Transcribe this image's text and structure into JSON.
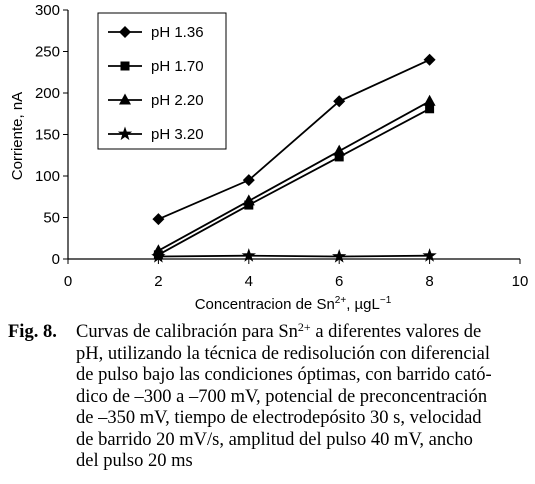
{
  "chart_data": {
    "type": "line",
    "title": "",
    "xlabel": "Concentracion de Sn",
    "xlabel_sup": "2+",
    "xlabel_unit": ", µgL",
    "xlabel_unit_sup": "−1",
    "ylabel": "Corriente, nA",
    "xlim": [
      0,
      10
    ],
    "ylim": [
      0,
      300
    ],
    "xticks": [
      "0",
      "2",
      "4",
      "6",
      "8",
      "10"
    ],
    "yticks": [
      "0",
      "50",
      "100",
      "150",
      "200",
      "250",
      "300"
    ],
    "grid": false,
    "legend_position": "top-left inside",
    "x": [
      2,
      4,
      6,
      8
    ],
    "series": [
      {
        "name": "pH 1.36",
        "marker": "diamond",
        "values": [
          48,
          95,
          190,
          240
        ]
      },
      {
        "name": "pH 1.70",
        "marker": "square",
        "values": [
          5,
          65,
          123,
          181
        ]
      },
      {
        "name": "pH 2.20",
        "marker": "triangle",
        "values": [
          10,
          70,
          130,
          190
        ]
      },
      {
        "name": "pH 3.20",
        "marker": "star",
        "values": [
          3,
          4,
          3,
          4
        ]
      }
    ]
  },
  "caption": {
    "label": "Fig. 8.",
    "line1_pre": "Curvas de calibración para Sn",
    "line1_sup": "2+",
    "line1_post": " a diferentes valores de",
    "lines": [
      "pH, utilizando la técnica de redisolución con diferencial",
      "de pulso bajo las condiciones óptimas, con barrido cató-",
      "dico de –300 a –700 mV, potencial de preconcentración",
      "de –350 mV, tiempo de electrodepósito 30 s, velocidad",
      "de barrido 20 mV/s, amplitud del pulso 40 mV, ancho",
      "del pulso 20 ms"
    ]
  }
}
